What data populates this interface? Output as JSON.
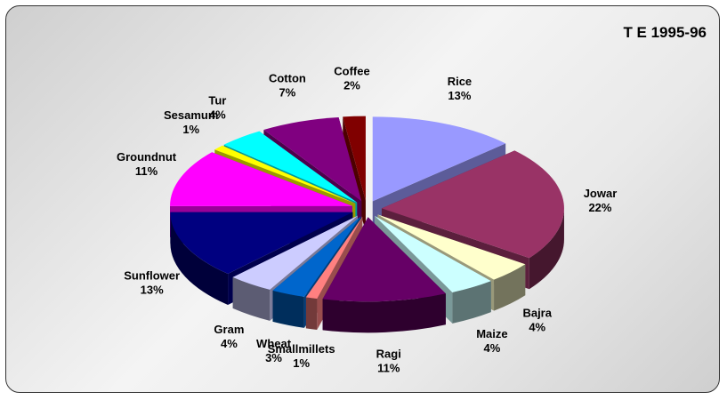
{
  "chart_data": {
    "type": "pie",
    "title": "T E 1995-96",
    "three_d": true,
    "exploded": true,
    "slices": [
      {
        "label": "Rice",
        "value": 13,
        "pct_label": "13%",
        "color": "#9999ff"
      },
      {
        "label": "Jowar",
        "value": 22,
        "pct_label": "22%",
        "color": "#993366"
      },
      {
        "label": "Bajra",
        "value": 4,
        "pct_label": "4%",
        "color": "#ffffcc"
      },
      {
        "label": "Maize",
        "value": 4,
        "pct_label": "4%",
        "color": "#ccffff"
      },
      {
        "label": "Ragi",
        "value": 11,
        "pct_label": "11%",
        "color": "#660066"
      },
      {
        "label": "Smallmillets",
        "value": 1,
        "pct_label": "1%",
        "color": "#ff8080"
      },
      {
        "label": "Wheat",
        "value": 3,
        "pct_label": "3%",
        "color": "#0066cc"
      },
      {
        "label": "Gram",
        "value": 4,
        "pct_label": "4%",
        "color": "#ccccff"
      },
      {
        "label": "Sunflower",
        "value": 13,
        "pct_label": "13%",
        "color": "#000080"
      },
      {
        "label": "Groundnut",
        "value": 11,
        "pct_label": "11%",
        "color": "#ff00ff"
      },
      {
        "label": "Sesamum",
        "value": 1,
        "pct_label": "1%",
        "color": "#ffff00"
      },
      {
        "label": "Tur",
        "value": 4,
        "pct_label": "4%",
        "color": "#00ffff"
      },
      {
        "label": "Cotton",
        "value": 7,
        "pct_label": "7%",
        "color": "#800080"
      },
      {
        "label": "Coffee",
        "value": 2,
        "pct_label": "2%",
        "color": "#800000"
      }
    ]
  }
}
